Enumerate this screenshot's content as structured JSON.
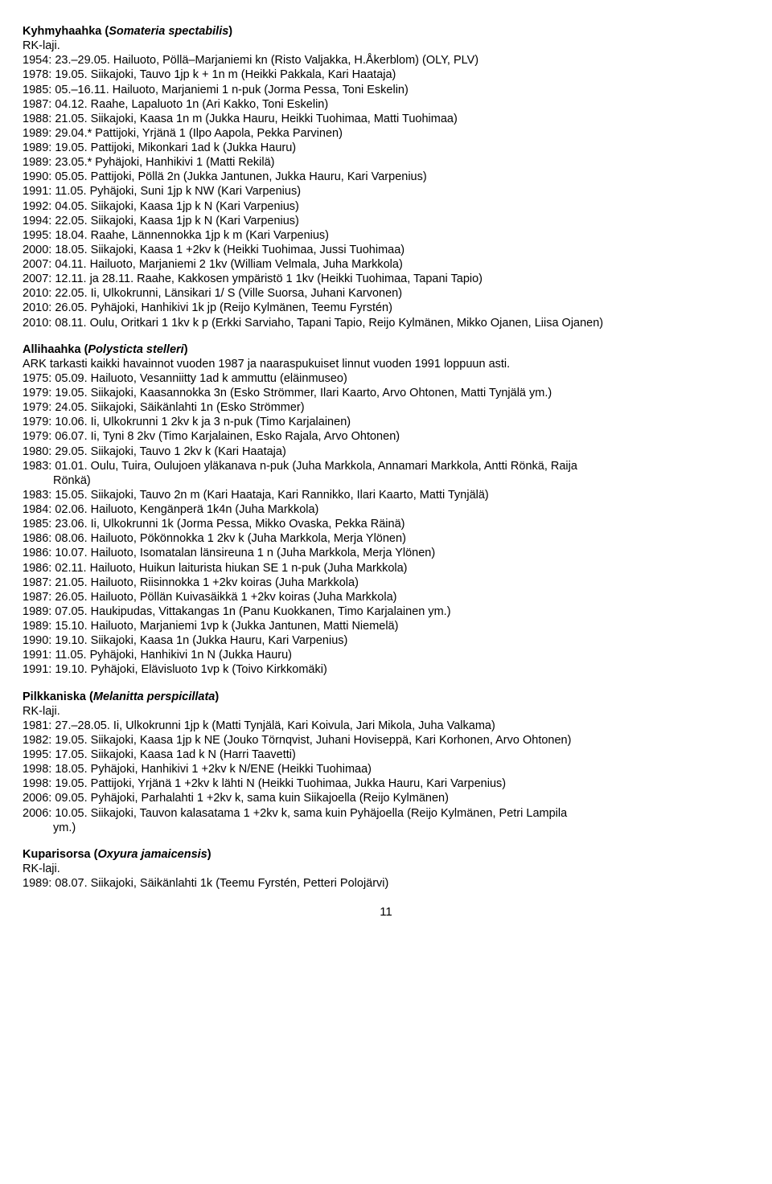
{
  "species": [
    {
      "common": "Kyhmyhaahka",
      "scientific": "Somateria spectabilis",
      "notes": [
        "RK-laji."
      ],
      "records": [
        "1954: 23.–29.05. Hailuoto, Pöllä–Marjaniemi kn (Risto Valjakka, H.Åkerblom) (OLY, PLV)",
        "1978: 19.05. Siikajoki, Tauvo 1jp k + 1n m (Heikki Pakkala, Kari Haataja)",
        "1985: 05.–16.11. Hailuoto, Marjaniemi 1 n-puk (Jorma Pessa, Toni Eskelin)",
        "1987: 04.12. Raahe, Lapaluoto 1n (Ari Kakko, Toni Eskelin)",
        "1988: 21.05. Siikajoki, Kaasa 1n m (Jukka Hauru, Heikki Tuohimaa, Matti Tuohimaa)",
        "1989: 29.04.* Pattijoki, Yrjänä 1 (Ilpo Aapola, Pekka Parvinen)",
        "1989: 19.05. Pattijoki, Mikonkari 1ad k (Jukka Hauru)",
        "1989: 23.05.* Pyhäjoki, Hanhikivi 1 (Matti Rekilä)",
        "1990: 05.05. Pattijoki, Pöllä 2n (Jukka Jantunen, Jukka Hauru, Kari Varpenius)",
        "1991: 11.05. Pyhäjoki, Suni 1jp k NW (Kari Varpenius)",
        "1992: 04.05. Siikajoki, Kaasa 1jp k N (Kari Varpenius)",
        "1994: 22.05. Siikajoki, Kaasa 1jp k N (Kari Varpenius)",
        "1995: 18.04. Raahe, Lännennokka 1jp k m (Kari Varpenius)",
        "2000: 18.05. Siikajoki, Kaasa 1 +2kv k (Heikki Tuohimaa, Jussi Tuohimaa)",
        "2007: 04.11. Hailuoto, Marjaniemi 2 1kv (William Velmala, Juha Markkola)",
        "2007: 12.11. ja 28.11. Raahe, Kakkosen ympäristö 1 1kv (Heikki Tuohimaa, Tapani Tapio)",
        "2010: 22.05. Ii, Ulkokrunni, Länsikari 1/ S (Ville Suorsa, Juhani Karvonen)",
        "2010: 26.05. Pyhäjoki, Hanhikivi 1k jp (Reijo Kylmänen, Teemu Fyrstén)",
        "2010: 08.11. Oulu, Oritkari 1 1kv k p (Erkki Sarviaho, Tapani Tapio, Reijo Kylmänen, Mikko Ojanen, Liisa Ojanen)"
      ]
    },
    {
      "common": "Allihaahka",
      "scientific": "Polysticta stelleri",
      "notes": [
        "ARK tarkasti kaikki havainnot vuoden 1987 ja naaraspukuiset linnut vuoden 1991 loppuun asti."
      ],
      "records": [
        "1975: 05.09. Hailuoto, Vesanniitty 1ad k ammuttu (eläinmuseo)",
        "1979: 19.05. Siikajoki, Kaasannokka 3n (Esko Strömmer, Ilari Kaarto, Arvo Ohtonen, Matti Tynjälä ym.)",
        "1979: 24.05. Siikajoki, Säikänlahti 1n (Esko Strömmer)",
        "1979: 10.06. Ii, Ulkokrunni 1 2kv k ja 3 n-puk (Timo Karjalainen)",
        "1979: 06.07. Ii, Tyni 8 2kv (Timo Karjalainen, Esko Rajala, Arvo Ohtonen)",
        "1980: 29.05. Siikajoki, Tauvo 1 2kv k (Kari Haataja)",
        {
          "text": "1983: 01.01. Oulu, Tuira, Oulujoen yläkanava n-puk (Juha Markkola, Annamari Markkola, Antti Rönkä, Raija",
          "cont": "Rönkä)"
        },
        "1983: 15.05. Siikajoki, Tauvo 2n m (Kari Haataja, Kari Rannikko, Ilari Kaarto, Matti Tynjälä)",
        "1984: 02.06. Hailuoto, Kengänperä 1k4n (Juha Markkola)",
        "1985: 23.06. Ii, Ulkokrunni 1k (Jorma Pessa, Mikko Ovaska, Pekka Räinä)",
        "1986: 08.06. Hailuoto, Pökönnokka 1 2kv k (Juha Markkola, Merja Ylönen)",
        "1986: 10.07. Hailuoto, Isomatalan länsireuna 1 n (Juha Markkola, Merja Ylönen)",
        "1986: 02.11. Hailuoto, Huikun laiturista hiukan SE 1 n-puk (Juha Markkola)",
        "1987: 21.05. Hailuoto, Riisinnokka 1 +2kv koiras (Juha Markkola)",
        "1987: 26.05. Hailuoto, Pöllän Kuivasäikkä 1 +2kv koiras (Juha Markkola)",
        "1989: 07.05. Haukipudas, Vittakangas 1n (Panu Kuokkanen, Timo Karjalainen ym.)",
        "1989: 15.10. Hailuoto, Marjaniemi 1vp k (Jukka Jantunen, Matti Niemelä)",
        "1990: 19.10. Siikajoki, Kaasa 1n (Jukka Hauru, Kari Varpenius)",
        "1991: 11.05. Pyhäjoki, Hanhikivi 1n N (Jukka Hauru)",
        "1991: 19.10. Pyhäjoki, Elävisluoto 1vp k (Toivo Kirkkomäki)"
      ]
    },
    {
      "common": "Pilkkaniska",
      "scientific": "Melanitta perspicillata",
      "notes": [
        "RK-laji."
      ],
      "records": [
        "1981: 27.–28.05. Ii, Ulkokrunni 1jp k (Matti Tynjälä, Kari Koivula, Jari Mikola, Juha Valkama)",
        "1982: 19.05. Siikajoki, Kaasa 1jp k NE (Jouko Törnqvist, Juhani Hoviseppä, Kari Korhonen, Arvo Ohtonen)",
        "1995: 17.05. Siikajoki, Kaasa 1ad k N (Harri Taavetti)",
        "1998: 18.05. Pyhäjoki, Hanhikivi 1 +2kv k N/ENE (Heikki Tuohimaa)",
        "1998: 19.05. Pattijoki, Yrjänä 1 +2kv k lähti N (Heikki Tuohimaa, Jukka Hauru, Kari Varpenius)",
        "2006: 09.05. Pyhäjoki, Parhalahti 1 +2kv k, sama kuin Siikajoella (Reijo Kylmänen)",
        {
          "text": "2006: 10.05. Siikajoki, Tauvon kalasatama 1 +2kv k, sama kuin Pyhäjoella (Reijo Kylmänen, Petri Lampila",
          "cont": "ym.)"
        }
      ]
    },
    {
      "common": "Kuparisorsa",
      "scientific": "Oxyura jamaicensis",
      "notes": [
        "RK-laji."
      ],
      "records": [
        "1989: 08.07. Siikajoki, Säikänlahti 1k (Teemu Fyrstén, Petteri Polojärvi)"
      ]
    }
  ],
  "page_number": "11"
}
